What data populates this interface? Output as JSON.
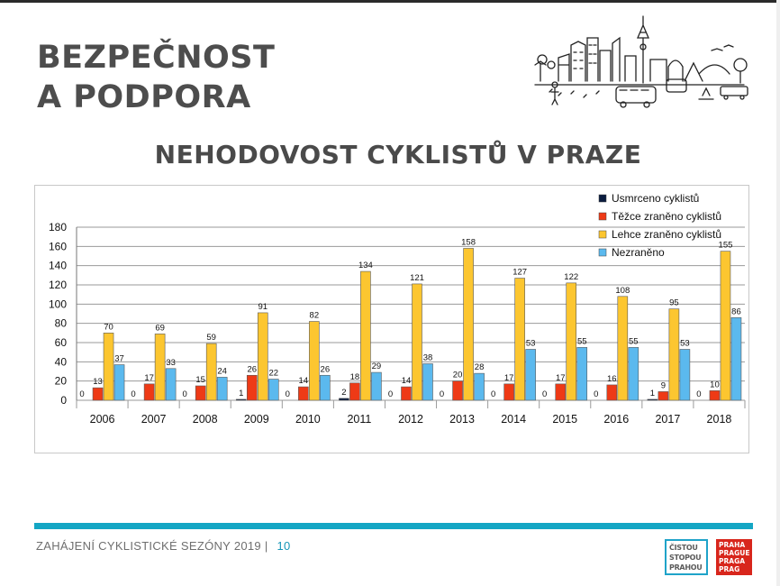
{
  "slide": {
    "section_title_line1": "BEZPEČNOST",
    "section_title_line2": "A PODPORA",
    "title": "NEHODOVOST CYKLISTŮ V PRAZE"
  },
  "footer": {
    "text": "ZAHÁJENÍ CYKLISTICKÉ SEZÓNY 2019 |",
    "page": "10"
  },
  "logos": {
    "csp_lines": [
      "ČISTOU",
      "STOPOU",
      "PRAHOU"
    ],
    "praha_lines": [
      "PRAHA",
      "PRAGUE",
      "PRAGA",
      "PRAG"
    ]
  },
  "chart_data": {
    "type": "bar",
    "categories": [
      "2006",
      "2007",
      "2008",
      "2009",
      "2010",
      "2011",
      "2012",
      "2013",
      "2014",
      "2015",
      "2016",
      "2017",
      "2018"
    ],
    "series": [
      {
        "name": "Usmrceno cyklistů",
        "color": "#0b1c3f",
        "values": [
          0,
          0,
          0,
          1,
          0,
          2,
          0,
          0,
          0,
          0,
          0,
          1,
          0
        ]
      },
      {
        "name": "Těžce zraněno cyklistů",
        "color": "#ee3a16",
        "values": [
          13,
          17,
          15,
          26,
          14,
          18,
          14,
          20,
          17,
          17,
          16,
          9,
          10
        ]
      },
      {
        "name": "Lehce zraněno cyklistů",
        "color": "#fcc630",
        "values": [
          70,
          69,
          59,
          91,
          82,
          134,
          121,
          158,
          127,
          122,
          108,
          95,
          155
        ]
      },
      {
        "name": "Nezraněno",
        "color": "#5bb9ee",
        "values": [
          37,
          33,
          24,
          22,
          26,
          29,
          38,
          28,
          53,
          55,
          55,
          53,
          86
        ]
      }
    ],
    "ylim": [
      0,
      180
    ],
    "yticks": [
      0,
      20,
      40,
      60,
      80,
      100,
      120,
      140,
      160,
      180
    ],
    "grid": true,
    "legend_position": "top-right"
  }
}
